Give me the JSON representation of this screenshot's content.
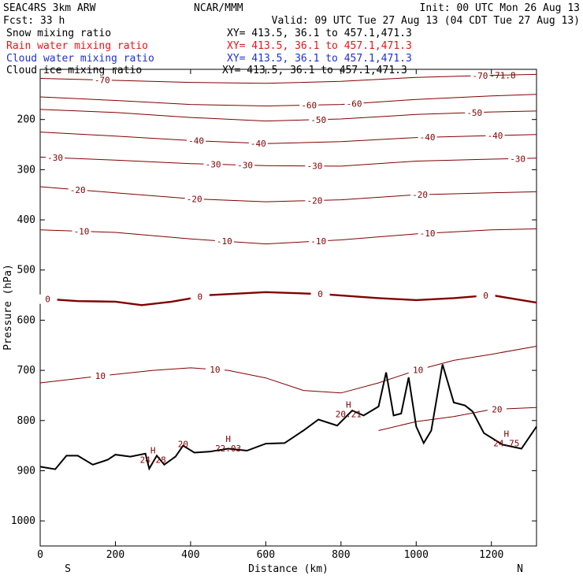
{
  "header": {
    "model": "SEAC4RS  3km ARW",
    "org": "NCAR/MMM",
    "init": "Init: 00 UTC Mon 26 Aug 13",
    "fcst": "Fcst:   33 h",
    "valid": "Valid: 09 UTC Tue 27 Aug 13 (04 CDT Tue 27 Aug 13)"
  },
  "fields": [
    {
      "name": "Snow mixing ratio",
      "xy": "XY= 413.5, 36.1 to 457.1,471.3",
      "color": "#000000"
    },
    {
      "name": "Rain water mixing ratio",
      "xy": "XY= 413.5, 36.1 to 457.1,471.3",
      "color": "#e8141c"
    },
    {
      "name": "Cloud water mixing ratio",
      "xy": "XY= 413.5, 36.1 to 457.1,471.3",
      "color": "#2030d0"
    },
    {
      "name": "Cloud ice mixing ratio",
      "xy": "XY= 413.5, 36.1 to 457.1,471.3",
      "color": "#000000"
    }
  ],
  "colors": {
    "isotherm": "#800000",
    "terrain": "#000000",
    "frame": "#000000"
  },
  "chart_data": {
    "type": "line",
    "xlabel": "Distance (km)",
    "ylabel": "Pressure (hPa)",
    "xlim": [
      0,
      1320
    ],
    "ylim": [
      1050,
      100
    ],
    "x_ticks": [
      0,
      200,
      400,
      600,
      800,
      1000,
      1200
    ],
    "y_ticks": [
      200,
      300,
      400,
      500,
      600,
      700,
      800,
      900,
      1000
    ],
    "x_end_labels": {
      "left": "S",
      "right": "N"
    },
    "temperature_contours": [
      {
        "level": -70,
        "points": [
          [
            0,
            118
          ],
          [
            200,
            122
          ],
          [
            400,
            126
          ],
          [
            600,
            128
          ],
          [
            800,
            124
          ],
          [
            1000,
            116
          ],
          [
            1200,
            112
          ],
          [
            1320,
            110
          ]
        ],
        "labels": [
          [
            165,
            "-70"
          ],
          [
            1170,
            "-70"
          ]
        ]
      },
      {
        "level": -60,
        "points": [
          [
            0,
            155
          ],
          [
            200,
            162
          ],
          [
            400,
            170
          ],
          [
            600,
            173
          ],
          [
            800,
            170
          ],
          [
            1000,
            160
          ],
          [
            1200,
            153
          ],
          [
            1320,
            150
          ]
        ],
        "labels": [
          [
            715,
            "-60"
          ],
          [
            835,
            "-60"
          ]
        ]
      },
      {
        "level": -50,
        "points": [
          [
            0,
            180
          ],
          [
            200,
            186
          ],
          [
            400,
            196
          ],
          [
            600,
            203
          ],
          [
            800,
            199
          ],
          [
            1000,
            190
          ],
          [
            1200,
            185
          ],
          [
            1320,
            183
          ]
        ],
        "labels": [
          [
            740,
            "-50"
          ],
          [
            1155,
            "-50"
          ]
        ]
      },
      {
        "level": -40,
        "points": [
          [
            0,
            225
          ],
          [
            200,
            233
          ],
          [
            400,
            242
          ],
          [
            600,
            248
          ],
          [
            800,
            244
          ],
          [
            1000,
            236
          ],
          [
            1200,
            232
          ],
          [
            1320,
            230
          ]
        ],
        "labels": [
          [
            415,
            "-40"
          ],
          [
            580,
            "-40"
          ],
          [
            1030,
            "-40"
          ],
          [
            1210,
            "-40"
          ]
        ]
      },
      {
        "level": -30,
        "points": [
          [
            0,
            275
          ],
          [
            200,
            281
          ],
          [
            400,
            288
          ],
          [
            600,
            292
          ],
          [
            800,
            293
          ],
          [
            1000,
            283
          ],
          [
            1200,
            279
          ],
          [
            1320,
            277
          ]
        ],
        "labels": [
          [
            40,
            "-30"
          ],
          [
            460,
            "-30"
          ],
          [
            545,
            "-30"
          ],
          [
            730,
            "-30"
          ],
          [
            1270,
            "-30"
          ]
        ]
      },
      {
        "level": -20,
        "points": [
          [
            0,
            334
          ],
          [
            200,
            346
          ],
          [
            400,
            358
          ],
          [
            600,
            364
          ],
          [
            800,
            360
          ],
          [
            1000,
            350
          ],
          [
            1200,
            346
          ],
          [
            1320,
            344
          ]
        ],
        "labels": [
          [
            100,
            "-20"
          ],
          [
            410,
            "-20"
          ],
          [
            730,
            "-20"
          ],
          [
            1010,
            "-20"
          ]
        ]
      },
      {
        "level": -10,
        "points": [
          [
            0,
            420
          ],
          [
            200,
            425
          ],
          [
            400,
            438
          ],
          [
            600,
            448
          ],
          [
            800,
            440
          ],
          [
            1000,
            428
          ],
          [
            1200,
            420
          ],
          [
            1320,
            418
          ]
        ],
        "labels": [
          [
            110,
            "-10"
          ],
          [
            490,
            "-10"
          ],
          [
            740,
            "-10"
          ],
          [
            1030,
            "-10"
          ]
        ]
      },
      {
        "level": 0,
        "points": [
          [
            0,
            557
          ],
          [
            100,
            562
          ],
          [
            200,
            563
          ],
          [
            270,
            570
          ],
          [
            350,
            563
          ],
          [
            450,
            550
          ],
          [
            600,
            544
          ],
          [
            750,
            548
          ],
          [
            900,
            556
          ],
          [
            1000,
            560
          ],
          [
            1100,
            556
          ],
          [
            1200,
            550
          ],
          [
            1320,
            565
          ]
        ],
        "labels": [
          [
            20,
            "0"
          ],
          [
            425,
            "0"
          ],
          [
            745,
            "0"
          ],
          [
            1185,
            "0"
          ]
        ]
      },
      {
        "level": 10,
        "points": [
          [
            0,
            725
          ],
          [
            150,
            712
          ],
          [
            300,
            700
          ],
          [
            400,
            695
          ],
          [
            500,
            700
          ],
          [
            600,
            715
          ],
          [
            700,
            740
          ],
          [
            800,
            745
          ],
          [
            900,
            725
          ],
          [
            1000,
            700
          ],
          [
            1100,
            680
          ],
          [
            1200,
            668
          ],
          [
            1320,
            652
          ]
        ],
        "labels": [
          [
            160,
            "10"
          ],
          [
            465,
            "10"
          ],
          [
            1005,
            "10"
          ]
        ]
      },
      {
        "level": 20,
        "points": [
          [
            900,
            820
          ],
          [
            1000,
            802
          ],
          [
            1100,
            792
          ],
          [
            1200,
            778
          ],
          [
            1320,
            774
          ]
        ],
        "labels": [
          [
            1215,
            "20"
          ]
        ]
      }
    ],
    "terrain_points": [
      [
        0,
        892
      ],
      [
        40,
        897
      ],
      [
        70,
        870
      ],
      [
        100,
        870
      ],
      [
        140,
        888
      ],
      [
        180,
        878
      ],
      [
        200,
        868
      ],
      [
        240,
        872
      ],
      [
        280,
        866
      ],
      [
        290,
        896
      ],
      [
        310,
        870
      ],
      [
        330,
        888
      ],
      [
        360,
        872
      ],
      [
        380,
        850
      ],
      [
        410,
        864
      ],
      [
        450,
        862
      ],
      [
        500,
        856
      ],
      [
        550,
        860
      ],
      [
        600,
        846
      ],
      [
        650,
        845
      ],
      [
        700,
        820
      ],
      [
        740,
        798
      ],
      [
        790,
        810
      ],
      [
        830,
        780
      ],
      [
        860,
        790
      ],
      [
        900,
        772
      ],
      [
        920,
        704
      ],
      [
        940,
        790
      ],
      [
        960,
        786
      ],
      [
        980,
        714
      ],
      [
        1000,
        812
      ],
      [
        1020,
        845
      ],
      [
        1040,
        820
      ],
      [
        1070,
        688
      ],
      [
        1100,
        764
      ],
      [
        1130,
        770
      ],
      [
        1150,
        782
      ],
      [
        1180,
        825
      ],
      [
        1230,
        848
      ],
      [
        1280,
        856
      ],
      [
        1320,
        812
      ]
    ],
    "highs": [
      {
        "x": 300,
        "p": 875,
        "value": "24.28"
      },
      {
        "x": 500,
        "p": 852,
        "value": "22.03"
      },
      {
        "x": 820,
        "p": 784,
        "value": "20.21"
      },
      {
        "x": 1240,
        "p": 842,
        "value": "24.75"
      }
    ],
    "other_labels": [
      {
        "x": 380,
        "p": 847,
        "text": "20"
      },
      {
        "x": 1230,
        "p": 112,
        "text": "-71.8"
      }
    ]
  }
}
